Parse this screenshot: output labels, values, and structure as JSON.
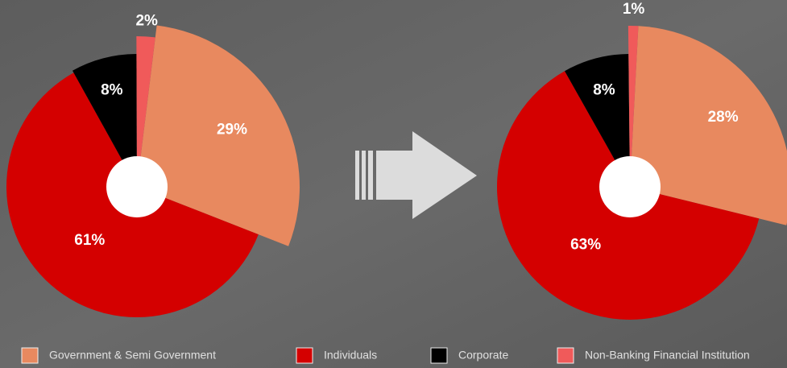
{
  "legend": {
    "items": [
      "Government & Semi Government",
      "Individuals",
      "Corporate",
      "Non-Banking Financial Institution"
    ],
    "colors": [
      "#e8895f",
      "#d40000",
      "#000000",
      "#f05a5a"
    ]
  },
  "chart_data": [
    {
      "type": "pie",
      "values": [
        29,
        61,
        8,
        2
      ],
      "value_labels": [
        "29%",
        "61%",
        "8%",
        "2%"
      ]
    },
    {
      "type": "pie",
      "values": [
        28,
        63,
        8,
        1
      ],
      "value_labels": [
        "28%",
        "63%",
        "8%",
        "1%"
      ]
    }
  ]
}
